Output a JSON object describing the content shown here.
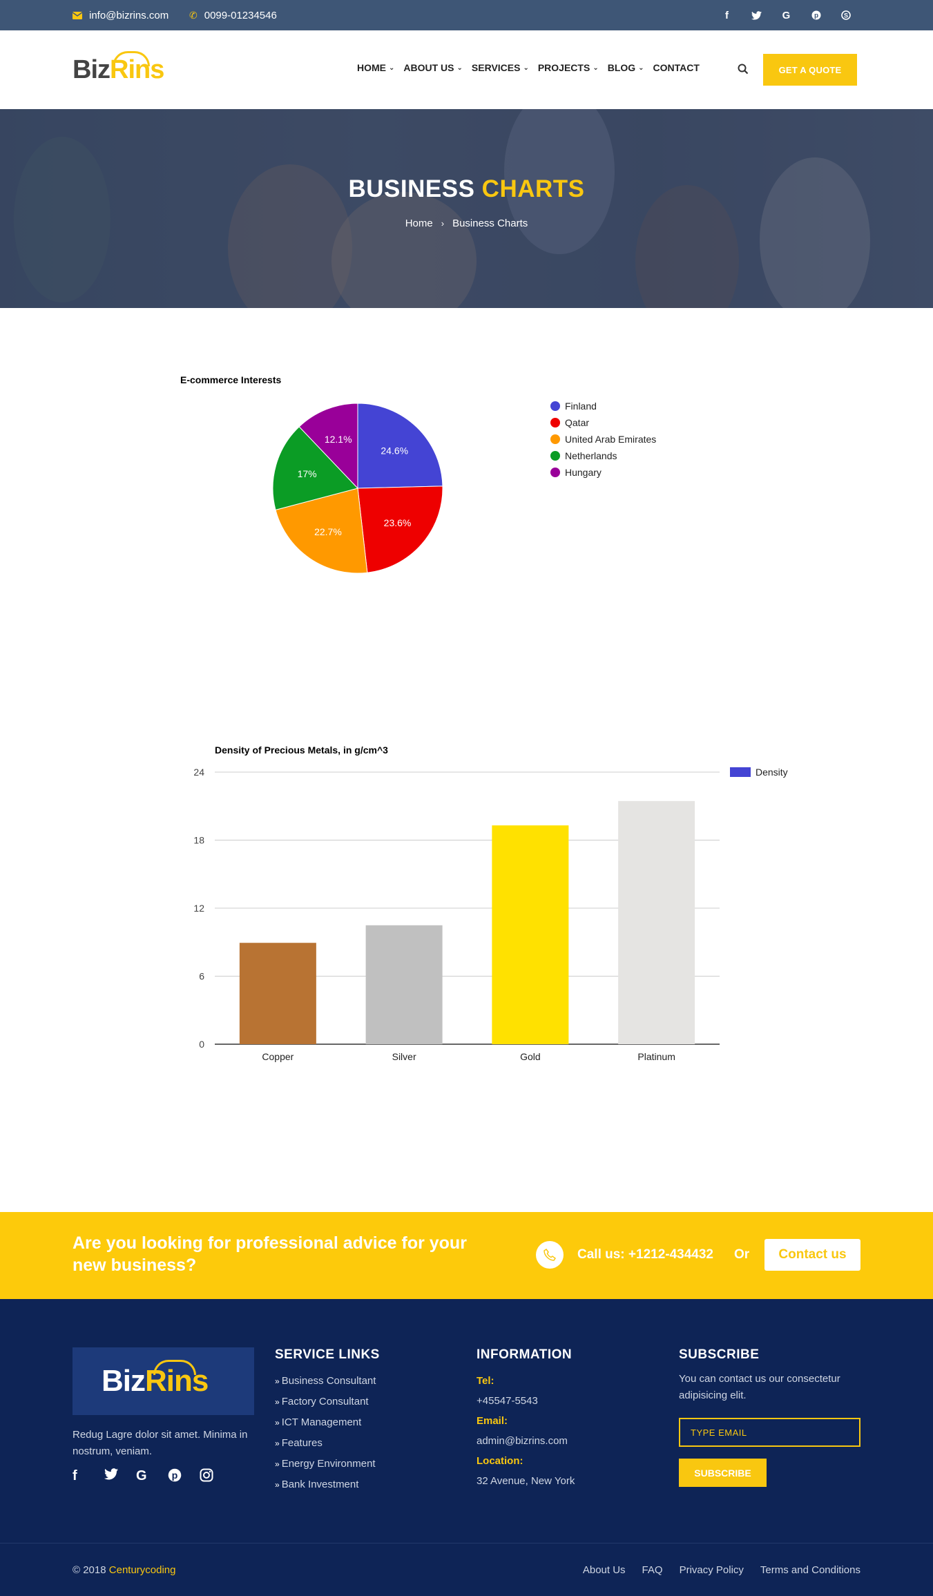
{
  "topbar": {
    "email": "info@bizrins.com",
    "phone": "0099-01234546",
    "socials": [
      "facebook-icon",
      "twitter-icon",
      "google-icon",
      "pinterest-icon",
      "skype-icon"
    ]
  },
  "brand": {
    "part1": "Biz",
    "part2": "Rins"
  },
  "nav": {
    "items": [
      {
        "label": "HOME",
        "dropdown": true
      },
      {
        "label": "ABOUT US",
        "dropdown": true
      },
      {
        "label": "SERVICES",
        "dropdown": true
      },
      {
        "label": "PROJECTS",
        "dropdown": true
      },
      {
        "label": "BLOG",
        "dropdown": true
      },
      {
        "label": "CONTACT",
        "dropdown": false
      }
    ],
    "quote_button": "GET A QUOTE"
  },
  "banner": {
    "title_part1": "BUSINESS",
    "title_part2": "CHARTS",
    "breadcrumb_home": "Home",
    "breadcrumb_current": "Business Charts"
  },
  "chart_data": [
    {
      "type": "pie",
      "title": "E-commerce Interests",
      "labels": [
        "Finland",
        "Qatar",
        "United Arab Emirates",
        "Netherlands",
        "Hungary"
      ],
      "values": [
        24.6,
        23.6,
        22.7,
        17,
        12.1
      ],
      "value_labels": [
        "24.6%",
        "23.6%",
        "22.7%",
        "17%",
        "12.1%"
      ],
      "colors": [
        "#4444d4",
        "#ee0000",
        "#ff9900",
        "#0b9c25",
        "#990099"
      ],
      "legend_position": "right"
    },
    {
      "type": "bar",
      "title": "Density of Precious Metals, in g/cm^3",
      "categories": [
        "Copper",
        "Silver",
        "Gold",
        "Platinum"
      ],
      "series": [
        {
          "name": "Density",
          "values": [
            8.94,
            10.49,
            19.3,
            21.45
          ]
        }
      ],
      "bar_colors": [
        "#b87333",
        "#c0c0c0",
        "#ffe100",
        "#e5e4e2"
      ],
      "legend_color": "#4444d4",
      "ylim": [
        0,
        24
      ],
      "yticks": [
        "0",
        "6",
        "12",
        "18",
        "24"
      ],
      "grid": true,
      "legend_position": "right"
    }
  ],
  "cta": {
    "text": "Are you looking for professional advice for your new business?",
    "call": "Call us: +1212-434432",
    "or": "Or",
    "contact_button": "Contact us"
  },
  "footer": {
    "about": "Redug Lagre dolor sit amet. Minima in nostrum, veniam.",
    "socials": [
      "facebook-icon",
      "twitter-icon",
      "google-icon",
      "pinterest-icon",
      "instagram-icon"
    ],
    "service_links_title": "SERVICE LINKS",
    "service_links": [
      "Business Consultant",
      "Factory Consultant",
      "ICT Management",
      "Features",
      "Energy Environment",
      "Bank Investment"
    ],
    "information_title": "INFORMATION",
    "tel_label": "Tel:",
    "tel": "+45547-5543",
    "email_label": "Email:",
    "email": "admin@bizrins.com",
    "location_label": "Location:",
    "location": "32 Avenue, New York",
    "subscribe_title": "SUBSCRIBE",
    "subscribe_text": "You can contact us our consectetur adipisicing elit.",
    "email_placeholder": "TYPE EMAIL",
    "subscribe_button": "SUBSCRIBE"
  },
  "bottom": {
    "copyright": "© 2018",
    "company": "Centurycoding",
    "links": [
      "About Us",
      "FAQ",
      "Privacy Policy",
      "Terms and Conditions"
    ]
  },
  "colors": {
    "accent": "#f9c710",
    "topbar": "#3e5676",
    "footer": "#0e2456"
  }
}
